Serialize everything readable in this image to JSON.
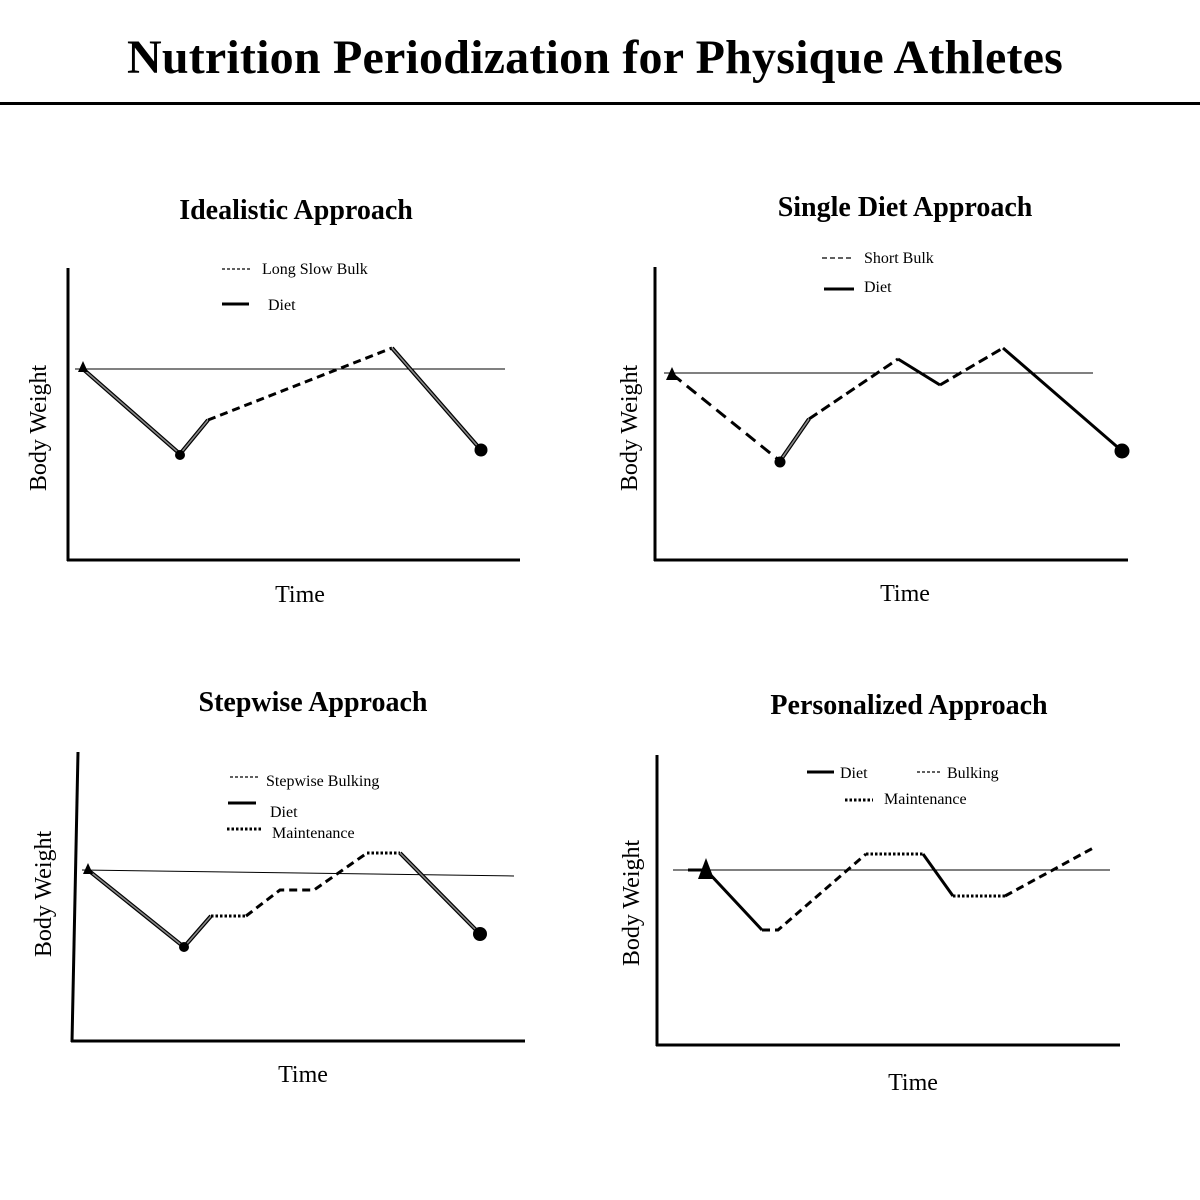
{
  "title": "Nutrition Periodization for Physique Athletes",
  "colors": {
    "ink": "#000000",
    "diet_line": "#888888"
  },
  "panels": [
    {
      "id": "idealistic",
      "title": "Idealistic Approach",
      "x_label": "Time",
      "y_label": "Body Weight",
      "legend": [
        {
          "style": "short-dash",
          "label": "Long Slow Bulk"
        },
        {
          "style": "solid",
          "label": "Diet"
        }
      ]
    },
    {
      "id": "single-diet",
      "title": "Single Diet Approach",
      "x_label": "Time",
      "y_label": "Body Weight",
      "legend": [
        {
          "style": "dash",
          "label": "Short Bulk"
        },
        {
          "style": "solid",
          "label": "Diet"
        }
      ]
    },
    {
      "id": "stepwise",
      "title": "Stepwise Approach",
      "x_label": "Time",
      "y_label": "Body Weight",
      "legend": [
        {
          "style": "short-dash",
          "label": "Stepwise Bulking"
        },
        {
          "style": "solid",
          "label": "Diet"
        },
        {
          "style": "dot",
          "label": "Maintenance"
        }
      ]
    },
    {
      "id": "personalized",
      "title": "Personalized Approach",
      "x_label": "Time",
      "y_label": "Body Weight",
      "legend": [
        {
          "style": "solid",
          "label": "Diet"
        },
        {
          "style": "short-dash",
          "label": "Bulking"
        },
        {
          "style": "dot",
          "label": "Maintenance"
        }
      ]
    }
  ]
}
